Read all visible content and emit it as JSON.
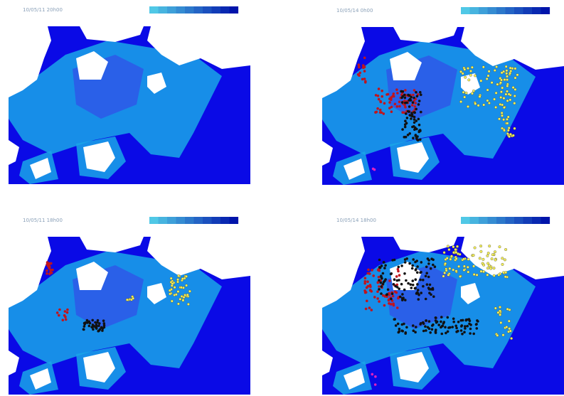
{
  "panels": [
    {
      "label": "10/05/11 20h00"
    },
    {
      "label": "10/05/14 0h00"
    },
    {
      "label": "10/05/11 18h00"
    },
    {
      "label": "10/05/14 18h00"
    }
  ]
}
